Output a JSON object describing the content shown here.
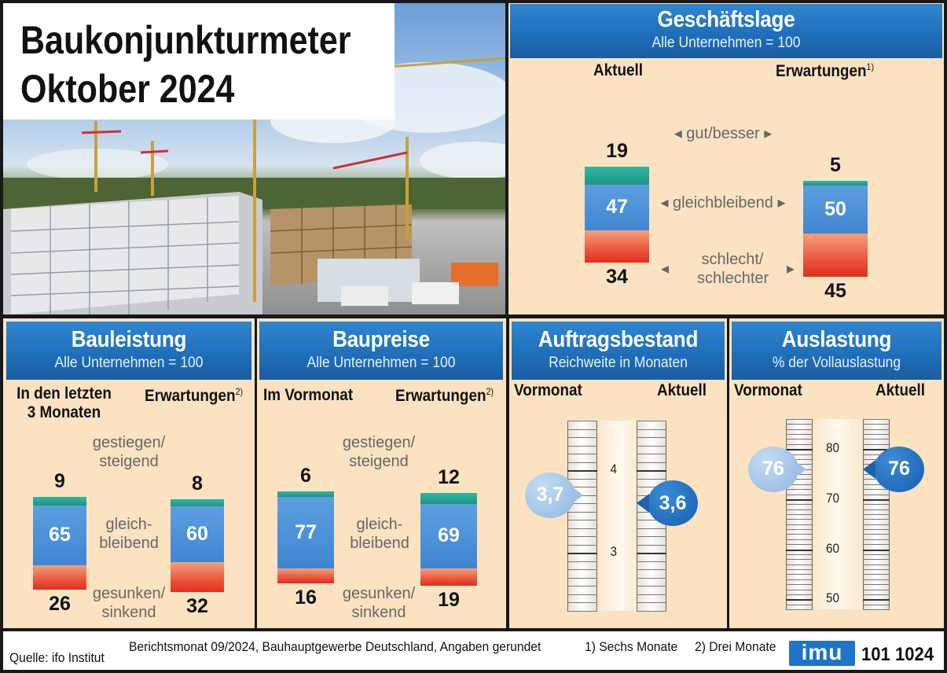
{
  "title": {
    "line1": "Baukonjunkturmeter",
    "line2": "Oktober 2024"
  },
  "colors": {
    "header": "#1f6db8",
    "panel": "#fbe3c2",
    "teal": "#1d9484",
    "blue": "#4a8fd8",
    "red": "#e54530",
    "bubble_prev": "#9dbfe5",
    "bubble_cur": "#1d67b5"
  },
  "chart_data": [
    {
      "type": "bar",
      "name": "geschaeftslage",
      "title": "Geschäftslage",
      "subtitle": "Alle Unternehmen = 100",
      "col_left": "Aktuell",
      "col_right": "Erwartungen",
      "col_right_note": "1)",
      "categories": [
        "gut/besser",
        "gleichbleibend",
        "schlecht/ schlechter"
      ],
      "series": [
        {
          "name": "Aktuell",
          "values": [
            19,
            47,
            34
          ]
        },
        {
          "name": "Erwartungen",
          "values": [
            5,
            50,
            45
          ]
        }
      ]
    },
    {
      "type": "bar",
      "name": "bauleistung",
      "title": "Bauleistung",
      "subtitle": "Alle Unternehmen = 100",
      "col_left": "In den letzten 3 Monaten",
      "col_right": "Erwartungen",
      "col_right_note": "2)",
      "categories": [
        "gestiegen/ steigend",
        "gleich- bleibend",
        "gesunken/ sinkend"
      ],
      "series": [
        {
          "name": "In den letzten 3 Monaten",
          "values": [
            9,
            65,
            26
          ]
        },
        {
          "name": "Erwartungen",
          "values": [
            8,
            60,
            32
          ]
        }
      ]
    },
    {
      "type": "bar",
      "name": "baupreise",
      "title": "Baupreise",
      "subtitle": "Alle Unternehmen = 100",
      "col_left": "Im Vormonat",
      "col_right": "Erwartungen",
      "col_right_note": "2)",
      "categories": [
        "gestiegen/ steigend",
        "gleich- bleibend",
        "gesunken/ sinkend"
      ],
      "series": [
        {
          "name": "Im Vormonat",
          "values": [
            6,
            77,
            16
          ]
        },
        {
          "name": "Erwartungen",
          "values": [
            12,
            69,
            19
          ]
        }
      ]
    },
    {
      "type": "gauge",
      "name": "auftragsbestand",
      "title": "Auftragsbestand",
      "subtitle": "Reichweite in Monaten",
      "col_left": "Vormonat",
      "col_right": "Aktuell",
      "ylim": [
        2.3,
        4.6
      ],
      "ticks": [
        4,
        3
      ],
      "series": [
        {
          "name": "Vormonat",
          "value": 3.7,
          "label": "3,7"
        },
        {
          "name": "Aktuell",
          "value": 3.6,
          "label": "3,6"
        }
      ]
    },
    {
      "type": "gauge",
      "name": "auslastung",
      "title": "Auslastung",
      "subtitle": "% der Vollauslastung",
      "col_left": "Vormonat",
      "col_right": "Aktuell",
      "ylim": [
        48,
        86
      ],
      "ticks": [
        80,
        70,
        60,
        50
      ],
      "series": [
        {
          "name": "Vormonat",
          "value": 76,
          "label": "76"
        },
        {
          "name": "Aktuell",
          "value": 76,
          "label": "76"
        }
      ]
    }
  ],
  "footer": {
    "source": "Quelle: ifo Institut",
    "note": "Berichtsmonat 09/2024, Bauhauptgewerbe Deutschland, Angaben gerundet",
    "fn1": "1) Sechs Monate",
    "fn2": "2) Drei Monate",
    "logo": "imu",
    "code": "101 1024"
  }
}
